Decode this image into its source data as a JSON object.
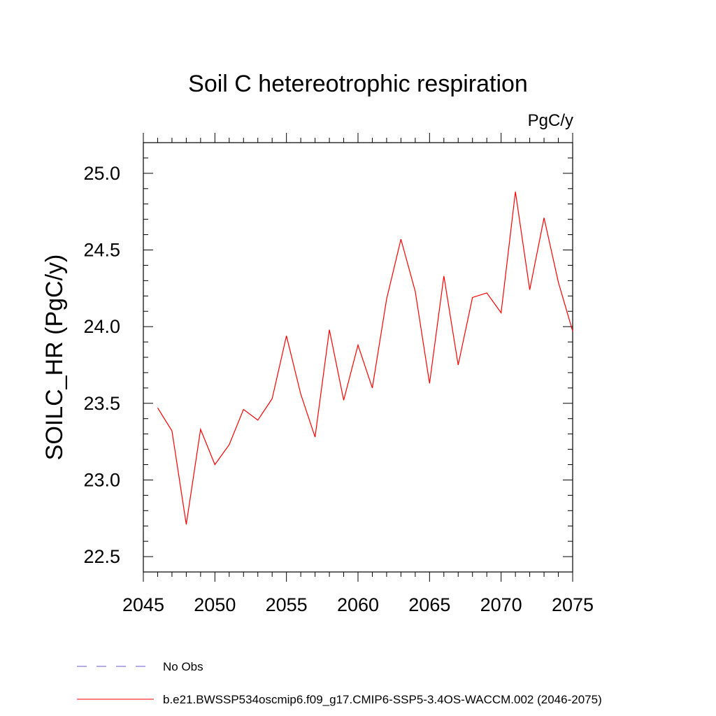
{
  "chart_data": {
    "type": "line",
    "title": "Soil C hetereotrophic respiration",
    "units_label": "PgC/y",
    "xlabel": "",
    "ylabel": "SOILC_HR  (PgC/y)",
    "xlim": [
      2045,
      2075
    ],
    "ylim": [
      22.4,
      25.2
    ],
    "x_ticks": [
      "2045",
      "2050",
      "2055",
      "2060",
      "2065",
      "2070",
      "2075"
    ],
    "y_ticks": [
      "22.5",
      "23.0",
      "23.5",
      "24.0",
      "24.5",
      "25.0"
    ],
    "series": [
      {
        "name": "b.e21.BWSSP534oscmip6.f09_g17.CMIP6-SSP5-3.4OS-WACCM.002 (2046-2075)",
        "color": "#ff0000",
        "dash": "solid",
        "x": [
          2046,
          2047,
          2048,
          2049,
          2050,
          2051,
          2052,
          2053,
          2054,
          2055,
          2056,
          2057,
          2058,
          2059,
          2060,
          2061,
          2062,
          2063,
          2064,
          2065,
          2066,
          2067,
          2068,
          2069,
          2070,
          2071,
          2072,
          2073,
          2074,
          2075
        ],
        "values": [
          23.47,
          23.32,
          22.71,
          23.33,
          23.1,
          23.23,
          23.46,
          23.39,
          23.53,
          23.94,
          23.56,
          23.28,
          23.98,
          23.52,
          23.88,
          23.6,
          24.18,
          24.57,
          24.23,
          23.63,
          24.33,
          23.75,
          24.19,
          24.22,
          24.09,
          24.88,
          24.24,
          24.71,
          24.29,
          23.97
        ]
      }
    ],
    "legend": [
      {
        "label": "No Obs",
        "color": "#6a5acd",
        "dash": "dashed"
      },
      {
        "label": "b.e21.BWSSP534oscmip6.f09_g17.CMIP6-SSP5-3.4OS-WACCM.002 (2046-2075)",
        "color": "#ff0000",
        "dash": "solid"
      }
    ]
  }
}
